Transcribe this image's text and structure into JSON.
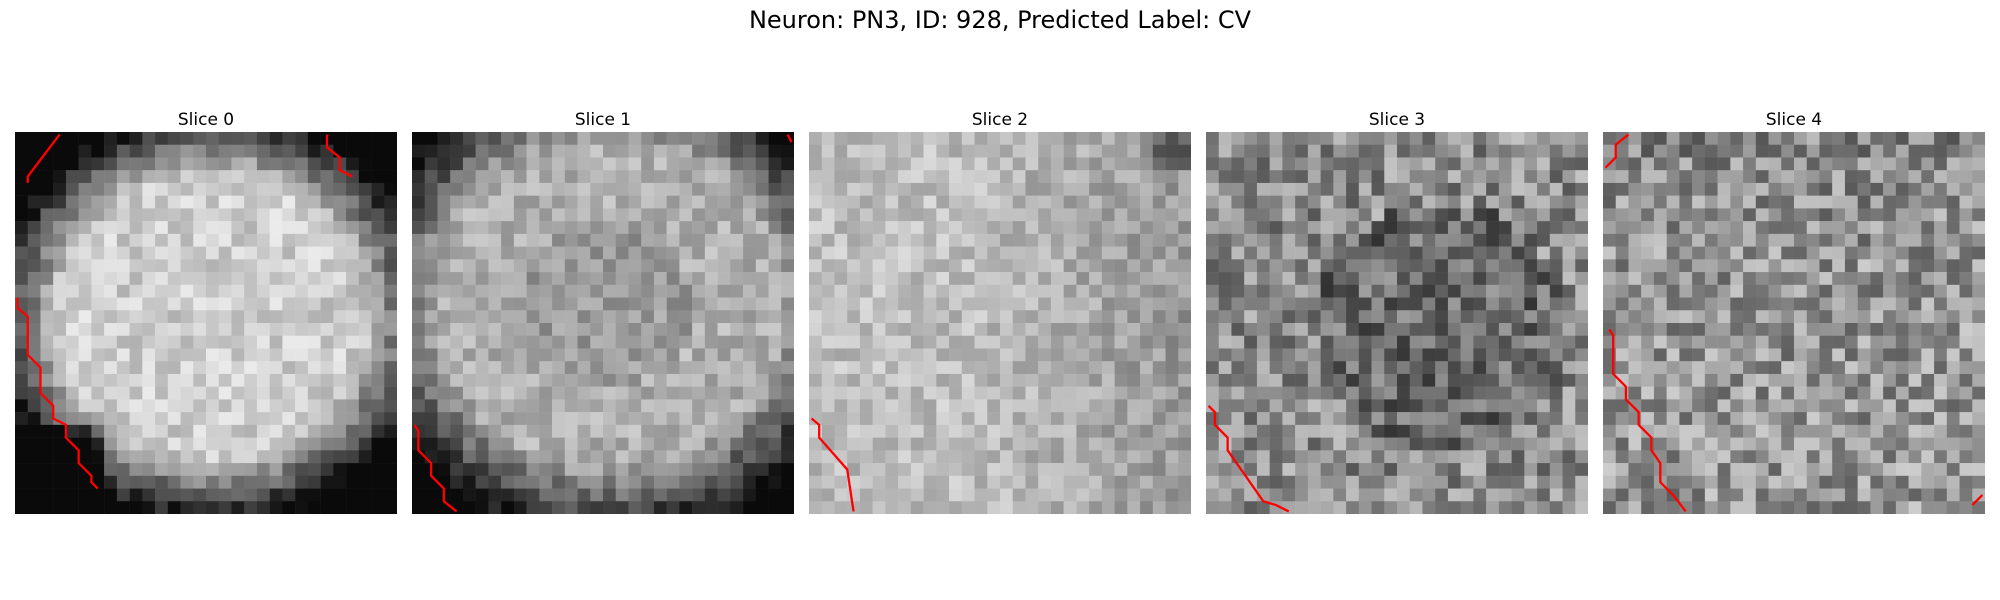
{
  "figure": {
    "title": "Neuron: PN3, ID: 928, Predicted Label: CV"
  },
  "panels": [
    {
      "title": "Slice 0",
      "seed": 11,
      "pattern": "bright-oval"
    },
    {
      "title": "Slice 1",
      "seed": 23,
      "pattern": "medium-oval"
    },
    {
      "title": "Slice 2",
      "seed": 37,
      "pattern": "light-left"
    },
    {
      "title": "Slice 3",
      "seed": 51,
      "pattern": "dark-noisy"
    },
    {
      "title": "Slice 4",
      "seed": 67,
      "pattern": "noisy"
    }
  ],
  "colors": {
    "contour": "#ff0000",
    "background": "#ffffff"
  }
}
